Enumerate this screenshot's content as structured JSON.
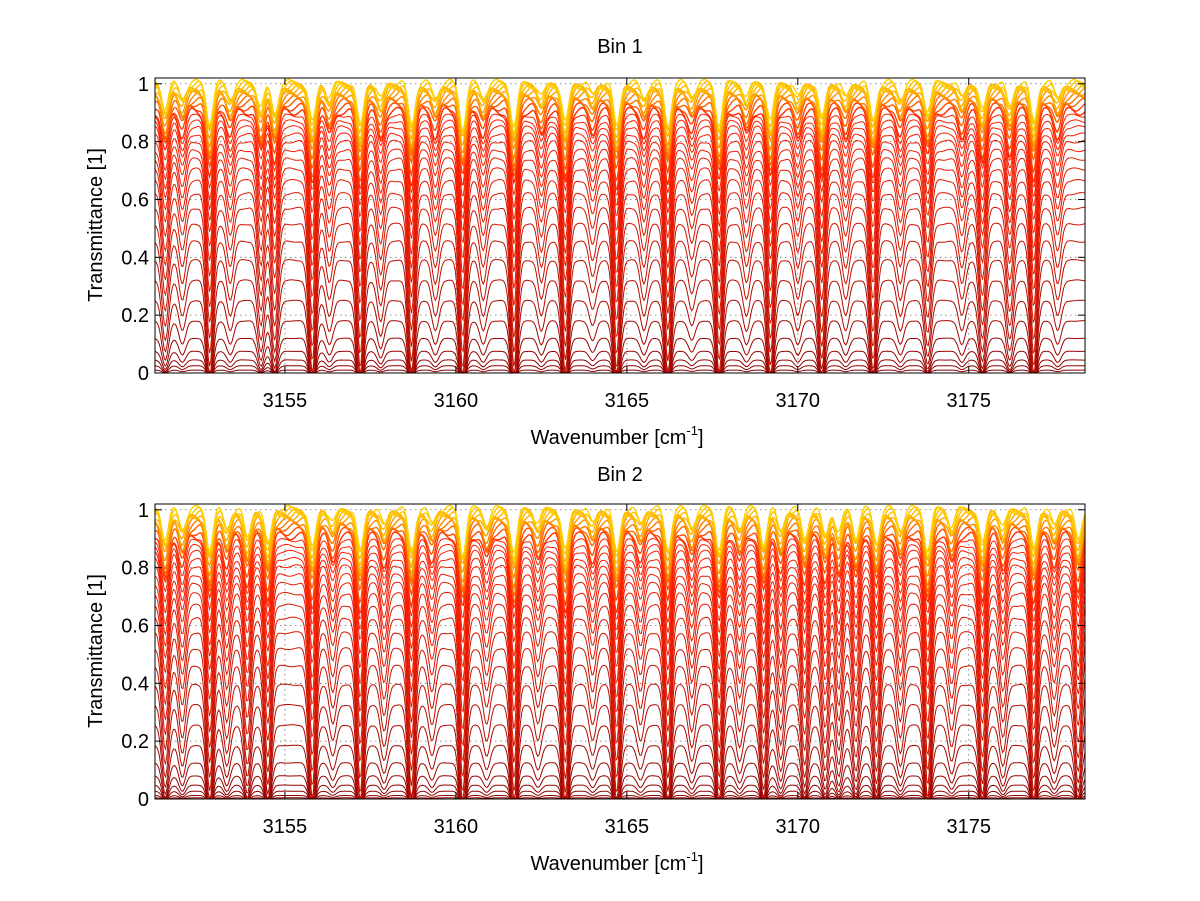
{
  "chart_data": [
    {
      "type": "line",
      "title": "Bin 1",
      "xlabel": "Wavenumber [cm",
      "xlabel_sup": "-1",
      "xlabel_end": "]",
      "ylabel": "Transmittance [1]",
      "xlim": [
        3151.2,
        3178.4
      ],
      "ylim": [
        0,
        1.02
      ],
      "xticks": [
        3155,
        3160,
        3165,
        3170,
        3175
      ],
      "xtick_labels": [
        "3155",
        "3160",
        "3165",
        "3170",
        "3175"
      ],
      "yticks": [
        0,
        0.2,
        0.4,
        0.6,
        0.8,
        1
      ],
      "ytick_labels": [
        "0",
        "0.2",
        "0.4",
        "0.6",
        "0.8",
        "1"
      ],
      "grid": "dotted",
      "series_count": 34,
      "series_baselines": [
        1.0,
        0.995,
        0.99,
        0.985,
        0.98,
        0.972,
        0.965,
        0.955,
        0.945,
        0.935,
        0.92,
        0.905,
        0.89,
        0.87,
        0.85,
        0.825,
        0.8,
        0.77,
        0.74,
        0.705,
        0.665,
        0.62,
        0.57,
        0.515,
        0.455,
        0.39,
        0.32,
        0.25,
        0.18,
        0.12,
        0.075,
        0.045,
        0.025,
        0.01
      ],
      "absorption_lines": [
        3151.5,
        3152.0,
        3152.8,
        3153.4,
        3154.3,
        3154.7,
        3155.8,
        3156.3,
        3157.2,
        3157.8,
        3158.7,
        3159.4,
        3160.2,
        3160.8,
        3161.7,
        3162.5,
        3163.2,
        3164.0,
        3164.7,
        3165.5,
        3166.2,
        3166.9,
        3167.7,
        3168.5,
        3169.2,
        3170.0,
        3170.7,
        3171.4,
        3172.2,
        3173.0,
        3173.8,
        3174.8,
        3175.4,
        3176.2,
        3176.9,
        3177.6
      ],
      "absorption_depths": [
        0.5,
        0.3,
        0.8,
        0.3,
        0.5,
        0.6,
        0.85,
        0.3,
        0.9,
        0.35,
        0.85,
        0.3,
        0.9,
        0.3,
        0.9,
        0.3,
        0.85,
        0.25,
        0.9,
        0.3,
        0.85,
        0.25,
        0.85,
        0.3,
        0.8,
        0.3,
        0.75,
        0.3,
        0.75,
        0.3,
        0.55,
        0.3,
        0.6,
        0.5,
        0.8,
        0.3
      ]
    },
    {
      "type": "line",
      "title": "Bin 2",
      "xlabel": "Wavenumber [cm",
      "xlabel_sup": "-1",
      "xlabel_end": "]",
      "ylabel": "Transmittance [1]",
      "xlim": [
        3151.2,
        3178.4
      ],
      "ylim": [
        0,
        1.02
      ],
      "xticks": [
        3155,
        3160,
        3165,
        3170,
        3175
      ],
      "xtick_labels": [
        "3155",
        "3160",
        "3165",
        "3170",
        "3175"
      ],
      "yticks": [
        0,
        0.2,
        0.4,
        0.6,
        0.8,
        1
      ],
      "ytick_labels": [
        "0",
        "0.2",
        "0.4",
        "0.6",
        "0.8",
        "1"
      ],
      "grid": "dotted",
      "series_count": 34,
      "series_baselines": [
        1.0,
        0.995,
        0.99,
        0.985,
        0.978,
        0.97,
        0.96,
        0.95,
        0.94,
        0.925,
        0.91,
        0.895,
        0.875,
        0.855,
        0.83,
        0.805,
        0.775,
        0.745,
        0.71,
        0.67,
        0.625,
        0.575,
        0.52,
        0.46,
        0.395,
        0.325,
        0.255,
        0.185,
        0.125,
        0.08,
        0.048,
        0.027,
        0.012,
        0.004
      ],
      "absorption_lines": [
        3151.5,
        3152.0,
        3152.8,
        3153.3,
        3153.9,
        3154.5,
        3155.8,
        3156.4,
        3157.2,
        3157.9,
        3158.7,
        3159.3,
        3160.2,
        3160.9,
        3161.7,
        3162.4,
        3163.2,
        3164.0,
        3164.7,
        3165.4,
        3166.2,
        3166.9,
        3167.7,
        3168.3,
        3169.0,
        3169.5,
        3170.2,
        3170.8,
        3171.2,
        3171.7,
        3172.3,
        3173.0,
        3173.8,
        3174.5,
        3175.4,
        3176.0,
        3176.9,
        3177.5,
        3178.2
      ],
      "absorption_depths": [
        0.6,
        0.4,
        0.8,
        0.4,
        0.6,
        0.75,
        0.85,
        0.3,
        0.9,
        0.35,
        0.85,
        0.3,
        0.9,
        0.3,
        0.9,
        0.3,
        0.9,
        0.3,
        0.9,
        0.3,
        0.8,
        0.35,
        0.8,
        0.35,
        0.7,
        0.45,
        0.6,
        0.55,
        0.5,
        0.55,
        0.65,
        0.4,
        0.85,
        0.35,
        0.75,
        0.4,
        0.8,
        0.35,
        0.65
      ]
    }
  ],
  "colors": {
    "line_dark": "#8b0000",
    "line_mid": "#ff2000",
    "line_light": "#ffd000",
    "axis": "#000000",
    "grid": "#707070"
  }
}
